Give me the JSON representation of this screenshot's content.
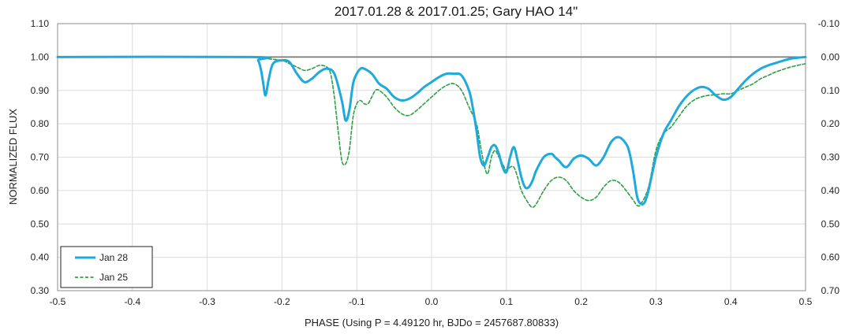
{
  "chart_data": {
    "type": "line",
    "title": "2017.01.28 & 2017.01.25; Gary HAO 14\"",
    "xlabel": "PHASE (Using P = 4.49120 hr, BJDo = 2457687.80833)",
    "ylabel": "NORMALIZED FLUX",
    "xlim": [
      -0.5,
      0.5
    ],
    "ylim": [
      0.3,
      1.1
    ],
    "x_ticks": [
      "-0.5",
      "-0.4",
      "-0.3",
      "-0.2",
      "-0.1",
      "0.0",
      "0.1",
      "0.2",
      "0.3",
      "0.4",
      "0.5"
    ],
    "y_ticks": [
      "0.30",
      "0.40",
      "0.50",
      "0.60",
      "0.70",
      "0.80",
      "0.90",
      "1.00",
      "1.10"
    ],
    "y2_ticks": [
      "0.70",
      "0.60",
      "0.50",
      "0.40",
      "0.30",
      "0.20",
      "0.10",
      "0.00",
      "-0.10"
    ],
    "grid": true,
    "legend_position": "bottom-left",
    "reference_line_y": 1.0,
    "series": [
      {
        "name": "Jan 28",
        "color": "#1eaadc",
        "style": "solid",
        "x": [
          -0.5,
          -0.24,
          -0.232,
          -0.228,
          -0.225,
          -0.222,
          -0.218,
          -0.212,
          -0.2,
          -0.19,
          -0.18,
          -0.17,
          -0.16,
          -0.15,
          -0.14,
          -0.13,
          -0.12,
          -0.115,
          -0.11,
          -0.105,
          -0.1,
          -0.095,
          -0.09,
          -0.08,
          -0.07,
          -0.06,
          -0.05,
          -0.04,
          -0.03,
          -0.02,
          -0.01,
          0.0,
          0.01,
          0.02,
          0.03,
          0.04,
          0.05,
          0.055,
          0.06,
          0.065,
          0.07,
          0.075,
          0.08,
          0.085,
          0.09,
          0.095,
          0.1,
          0.105,
          0.11,
          0.115,
          0.12,
          0.125,
          0.13,
          0.135,
          0.14,
          0.15,
          0.16,
          0.165,
          0.17,
          0.18,
          0.19,
          0.2,
          0.21,
          0.22,
          0.23,
          0.24,
          0.25,
          0.26,
          0.265,
          0.27,
          0.275,
          0.28,
          0.285,
          0.29,
          0.3,
          0.31,
          0.32,
          0.33,
          0.34,
          0.35,
          0.36,
          0.37,
          0.38,
          0.39,
          0.4,
          0.41,
          0.42,
          0.43,
          0.44,
          0.45,
          0.46,
          0.48,
          0.5
        ],
        "values": [
          1.0,
          1.0,
          0.99,
          0.96,
          0.92,
          0.885,
          0.93,
          0.98,
          0.99,
          0.985,
          0.95,
          0.925,
          0.935,
          0.955,
          0.965,
          0.95,
          0.87,
          0.81,
          0.84,
          0.92,
          0.95,
          0.965,
          0.965,
          0.95,
          0.92,
          0.905,
          0.88,
          0.87,
          0.875,
          0.89,
          0.91,
          0.925,
          0.94,
          0.95,
          0.95,
          0.945,
          0.9,
          0.85,
          0.78,
          0.7,
          0.675,
          0.7,
          0.73,
          0.735,
          0.71,
          0.67,
          0.655,
          0.7,
          0.73,
          0.69,
          0.64,
          0.61,
          0.61,
          0.63,
          0.66,
          0.7,
          0.71,
          0.7,
          0.69,
          0.67,
          0.695,
          0.705,
          0.695,
          0.675,
          0.7,
          0.745,
          0.76,
          0.74,
          0.71,
          0.65,
          0.58,
          0.56,
          0.565,
          0.6,
          0.7,
          0.77,
          0.81,
          0.85,
          0.88,
          0.9,
          0.91,
          0.905,
          0.885,
          0.872,
          0.88,
          0.905,
          0.93,
          0.95,
          0.965,
          0.975,
          0.982,
          0.995,
          1.0
        ]
      },
      {
        "name": "Jan 25",
        "color": "#2ea043",
        "style": "dashed",
        "x": [
          -0.5,
          -0.24,
          -0.22,
          -0.2,
          -0.19,
          -0.18,
          -0.17,
          -0.16,
          -0.15,
          -0.14,
          -0.135,
          -0.13,
          -0.125,
          -0.12,
          -0.115,
          -0.11,
          -0.105,
          -0.1,
          -0.095,
          -0.09,
          -0.085,
          -0.08,
          -0.075,
          -0.07,
          -0.06,
          -0.05,
          -0.04,
          -0.03,
          -0.02,
          -0.01,
          0.0,
          0.01,
          0.02,
          0.03,
          0.04,
          0.05,
          0.06,
          0.065,
          0.07,
          0.075,
          0.08,
          0.085,
          0.09,
          0.095,
          0.1,
          0.105,
          0.11,
          0.115,
          0.12,
          0.13,
          0.135,
          0.14,
          0.15,
          0.16,
          0.17,
          0.18,
          0.19,
          0.2,
          0.21,
          0.22,
          0.23,
          0.24,
          0.25,
          0.26,
          0.27,
          0.275,
          0.28,
          0.29,
          0.3,
          0.31,
          0.32,
          0.33,
          0.34,
          0.35,
          0.36,
          0.37,
          0.38,
          0.39,
          0.4,
          0.41,
          0.42,
          0.43,
          0.44,
          0.45,
          0.46,
          0.48,
          0.5
        ],
        "values": [
          1.0,
          1.0,
          0.995,
          0.99,
          0.98,
          0.97,
          0.96,
          0.965,
          0.975,
          0.97,
          0.95,
          0.88,
          0.78,
          0.69,
          0.68,
          0.72,
          0.82,
          0.86,
          0.87,
          0.86,
          0.86,
          0.88,
          0.9,
          0.9,
          0.88,
          0.85,
          0.83,
          0.825,
          0.84,
          0.86,
          0.88,
          0.9,
          0.915,
          0.92,
          0.9,
          0.85,
          0.8,
          0.74,
          0.68,
          0.65,
          0.7,
          0.72,
          0.7,
          0.68,
          0.66,
          0.67,
          0.67,
          0.64,
          0.6,
          0.56,
          0.55,
          0.56,
          0.6,
          0.63,
          0.64,
          0.63,
          0.6,
          0.58,
          0.57,
          0.58,
          0.61,
          0.63,
          0.625,
          0.6,
          0.57,
          0.555,
          0.56,
          0.61,
          0.72,
          0.77,
          0.79,
          0.82,
          0.85,
          0.87,
          0.88,
          0.885,
          0.887,
          0.89,
          0.89,
          0.9,
          0.91,
          0.92,
          0.935,
          0.945,
          0.955,
          0.97,
          0.98
        ]
      }
    ]
  }
}
